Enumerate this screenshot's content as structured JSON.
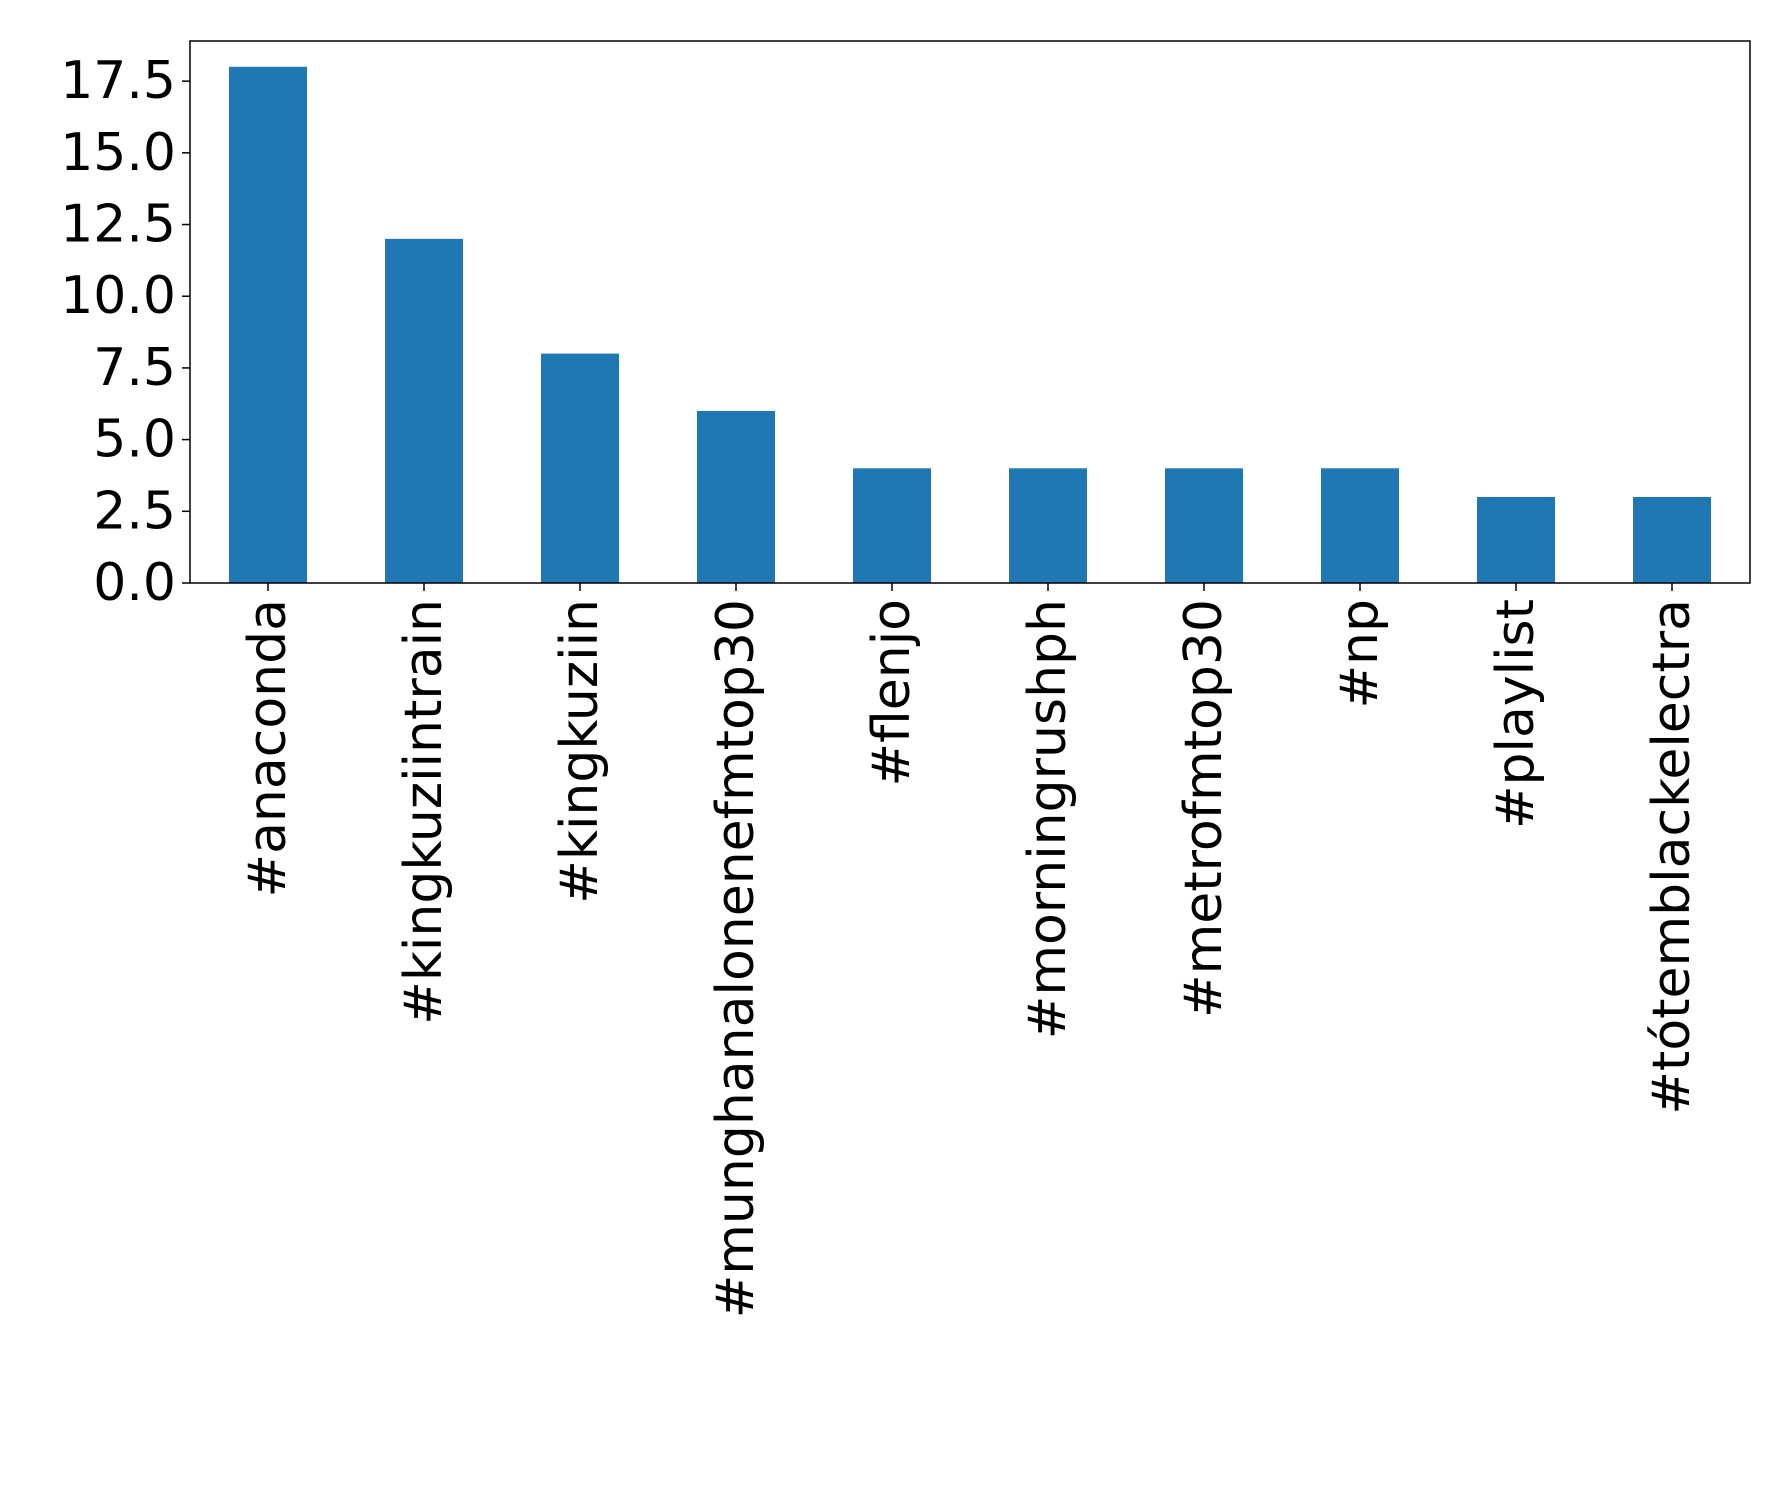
{
  "chart_data": {
    "type": "bar",
    "title": "",
    "xlabel": "",
    "ylabel": "",
    "categories": [
      "#anaconda",
      "#kingkuziintrain",
      "#kingkuziin",
      "#munghanalonenefmtop30",
      "#flenjo",
      "#morningrushph",
      "#metrofmtop30",
      "#np",
      "#playlist",
      "#tótemblackelectra"
    ],
    "values": [
      18,
      12,
      8,
      6,
      4,
      4,
      4,
      4,
      3,
      3
    ],
    "ylim": [
      0,
      18.9
    ],
    "yticks": [
      0.0,
      2.5,
      5.0,
      7.5,
      10.0,
      12.5,
      15.0,
      17.5
    ],
    "ytick_labels": [
      "0.0",
      "2.5",
      "5.0",
      "7.5",
      "10.0",
      "12.5",
      "15.0",
      "17.5"
    ],
    "grid": false,
    "legend": "none",
    "bar_color": "#1f77b4"
  }
}
